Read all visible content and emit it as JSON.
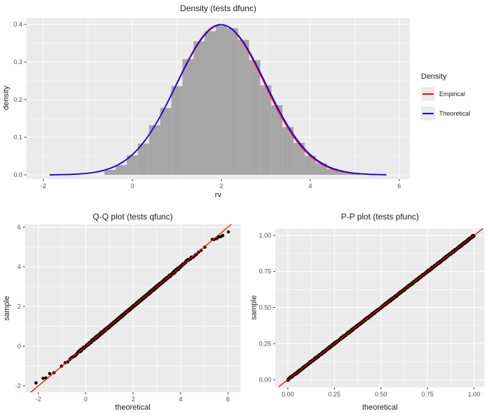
{
  "styles": {
    "background": "#ffffff",
    "panel_background": "#ebebeb",
    "grid_color": "#ffffff",
    "axis_text_color": "#4d4d4d",
    "title_color": "#1a1a1a",
    "tick_mark_color": "#333333",
    "histogram_fill": "#a6a6a6",
    "point_color": "#000000",
    "empirical_color": "#ff0000",
    "theoretical_color": "#0000ff",
    "ref_line_color": "#ff0000",
    "legend_key_background": "#ebebeb"
  },
  "chart_data": [
    {
      "type": "histogram+density-lines",
      "title": "Density (tests dfunc)",
      "xlabel": "rv",
      "ylabel": "density",
      "xlim": [
        -2.38,
        6.24
      ],
      "ylim": [
        -0.0111,
        0.4167
      ],
      "x_ticks": [
        -2,
        0,
        2,
        4,
        6
      ],
      "x_tick_labels": [
        "-2",
        "0",
        "2",
        "4",
        "6"
      ],
      "x_minor": [
        -1,
        1,
        3,
        5
      ],
      "y_ticks": [
        0,
        0.1,
        0.2,
        0.3,
        0.4
      ],
      "y_tick_labels": [
        "0.0",
        "0.1",
        "0.2",
        "0.3",
        "0.4"
      ],
      "y_minor": [
        0.05,
        0.15,
        0.25,
        0.35
      ],
      "grid": true,
      "legend_position": "right",
      "histogram": {
        "bin_start": -0.625,
        "bin_width": 0.25,
        "heights": [
          0.013,
          0.026,
          0.052,
          0.083,
          0.132,
          0.178,
          0.236,
          0.308,
          0.355,
          0.382,
          0.396,
          0.39,
          0.359,
          0.305,
          0.238,
          0.185,
          0.127,
          0.085,
          0.051,
          0.031,
          0.016,
          0.009,
          0.004
        ]
      },
      "curves": [
        {
          "name": "Empirical",
          "color": "#ff0000",
          "mean": 1.985,
          "sd": 0.99,
          "scale": 0.992,
          "x_range": [
            -1.85,
            5.72
          ]
        },
        {
          "name": "Theoretical",
          "color": "#0000ff",
          "mean": 2.0,
          "sd": 1.0,
          "scale": 1.0,
          "x_range": [
            -1.85,
            5.72
          ]
        }
      ],
      "legend": {
        "title": "Density",
        "entries": [
          {
            "label": "Empirical",
            "color": "#ff0000"
          },
          {
            "label": "Theoretical",
            "color": "#0000ff"
          }
        ]
      }
    },
    {
      "type": "scatter",
      "title": "Q-Q plot (tests qfunc)",
      "xlabel": "theoretical",
      "ylabel": "sample",
      "xlim": [
        -2.56,
        6.53
      ],
      "ylim": [
        -2.32,
        6.14
      ],
      "x_ticks": [
        -2,
        0,
        2,
        4,
        6
      ],
      "x_tick_labels": [
        "-2",
        "0",
        "2",
        "4",
        "6"
      ],
      "x_minor": [
        -1,
        1,
        3,
        5
      ],
      "y_ticks": [
        -2,
        0,
        2,
        4,
        6
      ],
      "y_tick_labels": [
        "-2",
        "0",
        "2",
        "4",
        "6"
      ],
      "y_minor": [
        -1,
        1,
        3,
        5
      ],
      "grid": true,
      "ref_line": {
        "slope": 1,
        "intercept": 0,
        "color": "#ff0000",
        "x_range": [
          -2.35,
          6.45
        ]
      },
      "points_spec": {
        "n": 1200,
        "seed": 11,
        "distribution": "normal",
        "mean": 2,
        "sd": 1,
        "jitter": 0.03,
        "radius": 2.3
      },
      "extra_points": [
        [
          -2.1,
          -1.85
        ],
        [
          -1.8,
          -1.62
        ],
        [
          -1.68,
          -1.6
        ],
        [
          -1.52,
          -1.38
        ],
        [
          5.42,
          5.38
        ],
        [
          5.52,
          5.42
        ],
        [
          5.62,
          5.5
        ],
        [
          5.7,
          5.52
        ],
        [
          5.78,
          5.58
        ],
        [
          6.02,
          5.76
        ]
      ]
    },
    {
      "type": "scatter",
      "title": "P-P plot (tests pfunc)",
      "xlabel": "theoretical",
      "ylabel": "sample",
      "xlim": [
        -0.067,
        1.056
      ],
      "ylim": [
        -0.053,
        1.048
      ],
      "x_ticks": [
        0,
        0.25,
        0.5,
        0.75,
        1
      ],
      "x_tick_labels": [
        "0.00",
        "0.25",
        "0.50",
        "0.75",
        "1.00"
      ],
      "x_minor": [
        0.125,
        0.375,
        0.625,
        0.875
      ],
      "y_ticks": [
        0,
        0.25,
        0.5,
        0.75,
        1
      ],
      "y_tick_labels": [
        "0.00",
        "0.25",
        "0.50",
        "0.75",
        "1.00"
      ],
      "y_minor": [
        0.125,
        0.375,
        0.625,
        0.875
      ],
      "grid": true,
      "ref_line": {
        "slope": 1,
        "intercept": 0,
        "color": "#ff0000",
        "x_range": [
          -0.05,
          1.06
        ]
      },
      "points_spec": {
        "n": 1400,
        "seed": 23,
        "distribution": "uniform",
        "jitter": 0.006,
        "radius": 2.2
      },
      "extra_points": []
    }
  ]
}
